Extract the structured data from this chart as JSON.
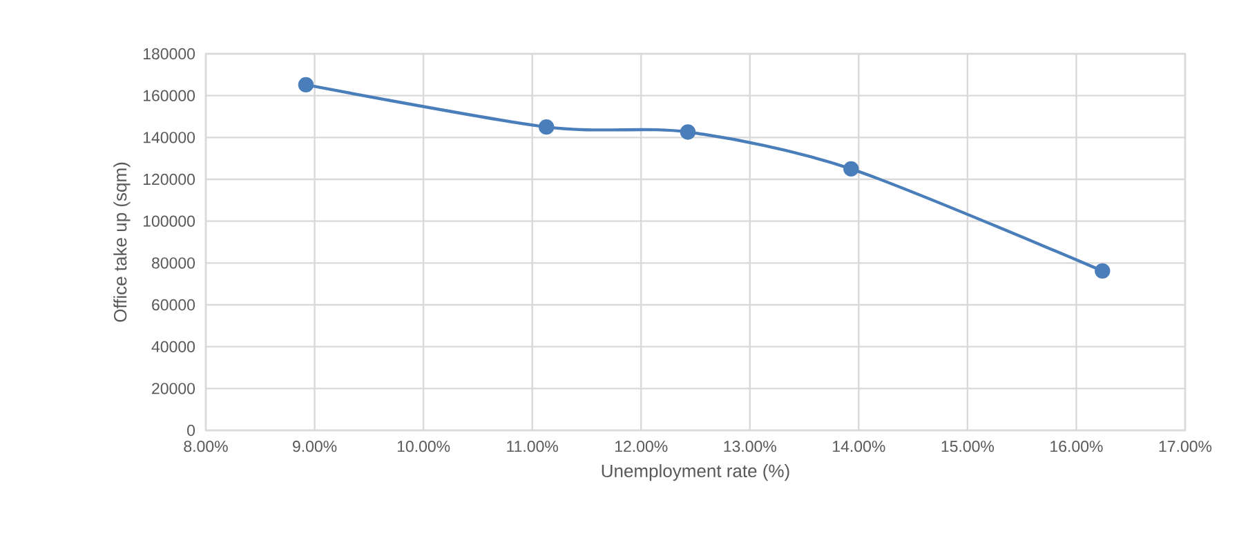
{
  "chart_data": {
    "type": "line",
    "xlabel": "Unemployment rate (%)",
    "ylabel": "Office take up (sqm)",
    "x": [
      8.92,
      11.13,
      12.43,
      13.93,
      16.24
    ],
    "series": [
      {
        "color": "#4a7ebb",
        "values": [
          165200,
          145000,
          142600,
          125000,
          76200
        ]
      }
    ],
    "xlim": [
      8,
      17
    ],
    "xticks": [
      {
        "value": 8,
        "label": "8.00%"
      },
      {
        "value": 9,
        "label": "9.00%"
      },
      {
        "value": 10,
        "label": "10.00%"
      },
      {
        "value": 11,
        "label": "11.00%"
      },
      {
        "value": 12,
        "label": "12.00%"
      },
      {
        "value": 13,
        "label": "13.00%"
      },
      {
        "value": 14,
        "label": "14.00%"
      },
      {
        "value": 15,
        "label": "15.00%"
      },
      {
        "value": 16,
        "label": "16.00%"
      },
      {
        "value": 17,
        "label": "17.00%"
      }
    ],
    "ylim": [
      0,
      180000
    ],
    "yticks": [
      0,
      20000,
      40000,
      60000,
      80000,
      100000,
      120000,
      140000,
      160000,
      180000
    ],
    "grid": true,
    "marker": "circle",
    "line_style": "solid"
  }
}
